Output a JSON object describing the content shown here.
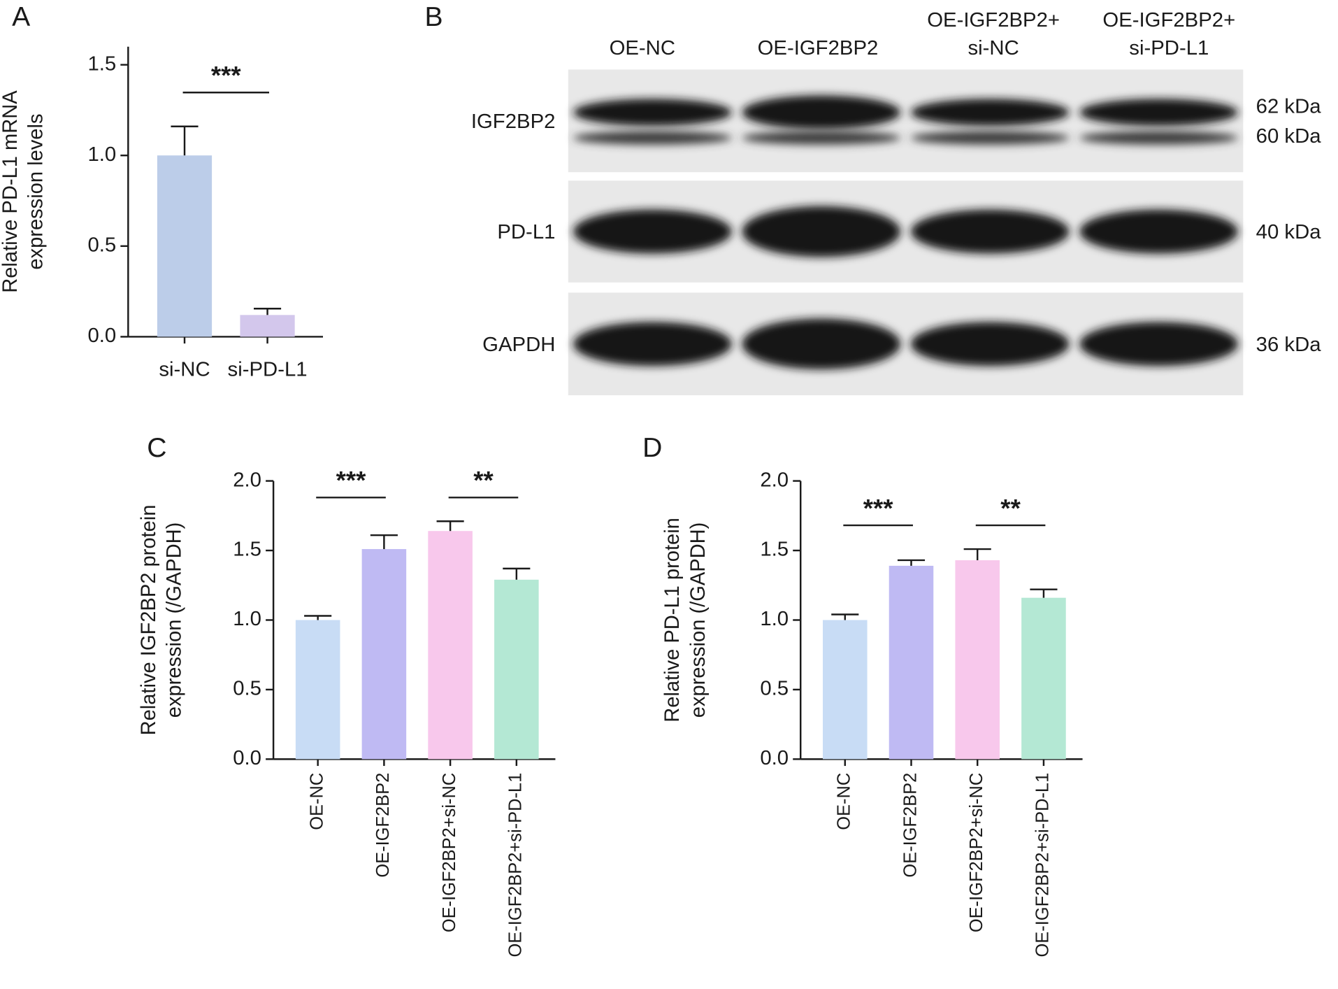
{
  "chart_data": [
    {
      "type": "bar",
      "panel": "A",
      "y_label": [
        "Relative PD-L1 mRNA",
        "expression levels"
      ],
      "categories": [
        "si-NC",
        "si-PD-L1"
      ],
      "values": [
        1.0,
        0.12
      ],
      "errors": [
        0.16,
        0.035
      ],
      "colors": [
        "#bccde9",
        "#d3c7ec"
      ],
      "ylim": [
        0,
        1.6
      ],
      "yticks": [
        {
          "value": 0,
          "label": "0.0"
        },
        {
          "value": 0.5,
          "label": "0.5"
        },
        {
          "value": 1,
          "label": "1.0"
        },
        {
          "value": 1.5,
          "label": "1.5"
        }
      ],
      "annotations": [
        {
          "text": "***",
          "groups": [
            0,
            1
          ]
        }
      ]
    },
    {
      "type": "bar",
      "panel": "C",
      "y_label": [
        "Relative IGF2BP2 protein",
        "expression (/GAPDH)"
      ],
      "categories": [
        "OE-NC",
        "OE-IGF2BP2",
        "OE-IGF2BP2+si-NC",
        "OE-IGF2BP2+si-PD-L1"
      ],
      "values": [
        1.0,
        1.51,
        1.64,
        1.29
      ],
      "errors": [
        0.03,
        0.1,
        0.07,
        0.08
      ],
      "colors": [
        "#c8dcf5",
        "#bfbaf3",
        "#f8c8ec",
        "#b4e8d4"
      ],
      "ylim": [
        0,
        2
      ],
      "yticks": [
        {
          "value": 0,
          "label": "0.0"
        },
        {
          "value": 0.5,
          "label": "0.5"
        },
        {
          "value": 1,
          "label": "1.0"
        },
        {
          "value": 1.5,
          "label": "1.5"
        },
        {
          "value": 2,
          "label": "2.0"
        }
      ],
      "annotations": [
        {
          "text": "***",
          "groups": [
            0,
            1
          ]
        },
        {
          "text": "**",
          "groups": [
            2,
            3
          ]
        }
      ]
    },
    {
      "type": "bar",
      "panel": "D",
      "y_label": [
        "Relative PD-L1 protein",
        "expression (/GAPDH)"
      ],
      "categories": [
        "OE-NC",
        "OE-IGF2BP2",
        "OE-IGF2BP2+si-NC",
        "OE-IGF2BP2+si-PD-L1"
      ],
      "values": [
        1.0,
        1.39,
        1.43,
        1.16
      ],
      "errors": [
        0.04,
        0.04,
        0.08,
        0.06
      ],
      "colors": [
        "#c8dcf5",
        "#bfbaf3",
        "#f8c8ec",
        "#b4e8d4"
      ],
      "ylim": [
        0,
        2
      ],
      "yticks": [
        {
          "value": 0,
          "label": "0.0"
        },
        {
          "value": 0.5,
          "label": "0.5"
        },
        {
          "value": 1,
          "label": "1.0"
        },
        {
          "value": 1.5,
          "label": "1.5"
        },
        {
          "value": 2,
          "label": "2.0"
        }
      ],
      "annotations": [
        {
          "text": "***",
          "groups": [
            0,
            1
          ]
        },
        {
          "text": "**",
          "groups": [
            2,
            3
          ]
        }
      ]
    }
  ],
  "blot": {
    "panel": "B",
    "lanes": [
      [
        "OE-NC"
      ],
      [
        "OE-IGF2BP2"
      ],
      [
        "OE-IGF2BP2+",
        "si-NC"
      ],
      [
        "OE-IGF2BP2+",
        "si-PD-L1"
      ]
    ],
    "rows": [
      {
        "label": "IGF2BP2",
        "sizes": [
          "62 kDa",
          "60 kDa"
        ]
      },
      {
        "label": "PD-L1",
        "sizes": [
          "40 kDa"
        ]
      },
      {
        "label": "GAPDH",
        "sizes": [
          "36 kDa"
        ]
      }
    ]
  }
}
